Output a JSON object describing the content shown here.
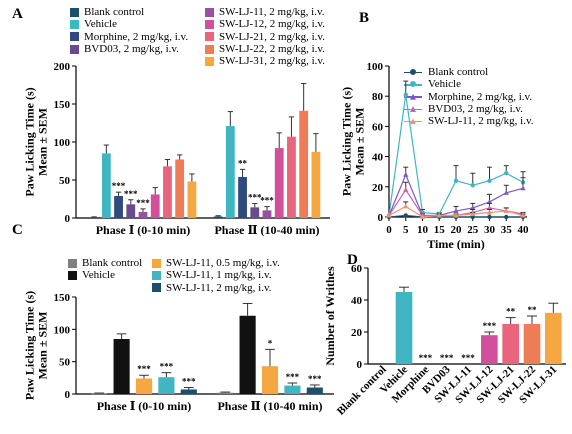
{
  "panels": [
    {
      "letter": "A"
    },
    {
      "letter": "B"
    },
    {
      "letter": "C"
    },
    {
      "letter": "D"
    }
  ],
  "chart_data": [
    {
      "panel": "A",
      "type": "bar",
      "ylabel": "Paw Licking Time (s)\nMean ± SEM",
      "ylim": [
        0,
        200
      ],
      "yticks": [
        0,
        50,
        100,
        150,
        200
      ],
      "groups": [
        "Phase Ⅰ (0-10 min)",
        "Phase Ⅱ (10-40 min)"
      ],
      "legend_placement": "top",
      "series": [
        {
          "name": "Blank control",
          "color": "#1b4f6b",
          "values": [
            1,
            2
          ],
          "err": [
            0.5,
            1
          ],
          "sig": [
            "",
            ""
          ]
        },
        {
          "name": "Vehicle",
          "color": "#3fb6c2",
          "values": [
            85,
            121
          ],
          "err": [
            11,
            19
          ],
          "sig": [
            "",
            ""
          ]
        },
        {
          "name": "Morphine, 2 mg/kg, i.v.",
          "color": "#2f4a7c",
          "values": [
            29,
            54
          ],
          "err": [
            5,
            10
          ],
          "sig": [
            "***",
            "**"
          ]
        },
        {
          "name": "BVD03, 2 mg/kg, i.v.",
          "color": "#6a4a8f",
          "values": [
            18,
            14
          ],
          "err": [
            6,
            5
          ],
          "sig": [
            "***",
            "***"
          ]
        },
        {
          "name": "SW-LJ-11, 2 mg/kg, i.v.",
          "color": "#9b4fa0",
          "values": [
            8,
            10
          ],
          "err": [
            4,
            5
          ],
          "sig": [
            "***",
            "***"
          ]
        },
        {
          "name": "SW-LJ-12, 2 mg/kg, i.v.",
          "color": "#d2509b",
          "values": [
            31,
            92
          ],
          "err": [
            9,
            20
          ],
          "sig": [
            "",
            ""
          ]
        },
        {
          "name": "SW-LJ-21, 2 mg/kg, i.v.",
          "color": "#e8657d",
          "values": [
            68,
            107
          ],
          "err": [
            9,
            26
          ],
          "sig": [
            "",
            ""
          ]
        },
        {
          "name": "SW-LJ-22, 2 mg/kg, i.v.",
          "color": "#ee7d57",
          "values": [
            77,
            141
          ],
          "err": [
            6,
            36
          ],
          "sig": [
            "",
            ""
          ]
        },
        {
          "name": "SW-LJ-31, 2 mg/kg, i.v.",
          "color": "#f5a742",
          "values": [
            48,
            87
          ],
          "err": [
            10,
            24
          ],
          "sig": [
            "",
            ""
          ]
        }
      ]
    },
    {
      "panel": "B",
      "type": "line",
      "xlabel": "Time (min)",
      "ylabel": "Paw Licking Time (s)\nMean ± SEM",
      "xlim": [
        0,
        40
      ],
      "ylim": [
        0,
        100
      ],
      "xticks": [
        0,
        5,
        10,
        15,
        20,
        25,
        30,
        35,
        40
      ],
      "yticks": [
        0,
        20,
        40,
        60,
        80,
        100
      ],
      "legend_placement": "top-right",
      "x": [
        0,
        5,
        10,
        15,
        20,
        25,
        30,
        35,
        40
      ],
      "series": [
        {
          "name": "Blank control",
          "color": "#1b4f6b",
          "marker": "circle",
          "values": [
            0,
            1,
            0,
            0,
            0,
            0,
            0,
            0,
            0
          ],
          "err": [
            0,
            0.5,
            0,
            0,
            0,
            0,
            0,
            0,
            0
          ]
        },
        {
          "name": "Vehicle",
          "color": "#3fb6c2",
          "marker": "circle",
          "values": [
            1,
            81,
            3,
            2,
            24,
            21,
            24,
            29,
            23
          ],
          "err": [
            0.5,
            9,
            2,
            1,
            10,
            8,
            9,
            5,
            7
          ]
        },
        {
          "name": "Morphine, 2 mg/kg, i.v.",
          "color": "#7b5bc2",
          "marker": "triangle",
          "values": [
            1,
            28,
            1,
            1,
            4,
            6,
            10,
            16,
            19
          ],
          "err": [
            0.5,
            5,
            1,
            1,
            3,
            3,
            5,
            5,
            7
          ]
        },
        {
          "name": "BVD03, 2 mg/kg, i.v.",
          "color": "#cf5fb0",
          "marker": "triangle",
          "values": [
            1,
            18,
            1,
            1,
            1,
            3,
            6,
            4,
            2
          ],
          "err": [
            0.5,
            5,
            1,
            1,
            1,
            2,
            3,
            2,
            1
          ]
        },
        {
          "name": "SW-LJ-11, 2 mg/kg, i.v.",
          "color": "#f0926a",
          "marker": "triangle",
          "values": [
            1,
            7,
            0,
            1,
            1,
            2,
            3,
            4,
            1
          ],
          "err": [
            0.5,
            3,
            0.5,
            1,
            1,
            1,
            2,
            2,
            1
          ]
        }
      ]
    },
    {
      "panel": "C",
      "type": "bar",
      "ylabel": "Paw Licking Time (s)\nMean ± SEM",
      "ylim": [
        0,
        150
      ],
      "yticks": [
        0,
        50,
        100,
        150
      ],
      "groups": [
        "Phase Ⅰ (0-10 min)",
        "Phase Ⅱ (10-40 min)"
      ],
      "legend_placement": "top",
      "series": [
        {
          "name": "Blank control",
          "color": "#808080",
          "values": [
            1,
            2
          ],
          "err": [
            0.5,
            1
          ],
          "sig": [
            "",
            ""
          ]
        },
        {
          "name": "Vehicle",
          "color": "#111111",
          "values": [
            85,
            121
          ],
          "err": [
            8,
            19
          ],
          "sig": [
            "",
            ""
          ]
        },
        {
          "name": "SW-LJ-11, 0.5 mg/kg, i.v.",
          "color": "#f5a742",
          "values": [
            24,
            43
          ],
          "err": [
            5,
            26
          ],
          "sig": [
            "***",
            "*"
          ]
        },
        {
          "name": "SW-LJ-11, 1 mg/kg, i.v.",
          "color": "#3fb6c2",
          "values": [
            26,
            13
          ],
          "err": [
            7,
            4
          ],
          "sig": [
            "***",
            "***"
          ]
        },
        {
          "name": "SW-LJ-11, 2 mg/kg, i.v.",
          "color": "#1b4f6b",
          "values": [
            7,
            10
          ],
          "err": [
            3,
            4
          ],
          "sig": [
            "***",
            "***"
          ]
        }
      ]
    },
    {
      "panel": "D",
      "type": "bar",
      "ylabel": "Number of Writhes",
      "ylim": [
        0,
        60
      ],
      "yticks": [
        0,
        20,
        40,
        60
      ],
      "categories": [
        "Blank control",
        "Vehicle",
        "Morphine",
        "BVD03",
        "SW-LJ-11",
        "SW-LJ-12",
        "SW-LJ-21",
        "SW-LJ-22",
        "SW-LJ-31"
      ],
      "values": [
        0,
        45,
        0,
        0,
        0,
        18,
        25,
        25,
        32
      ],
      "err": [
        0,
        3,
        0,
        0,
        0,
        2,
        4,
        5,
        6
      ],
      "sig": [
        "",
        "",
        "***",
        "***",
        "***",
        "***",
        "**",
        "**",
        ""
      ],
      "colors": [
        "#1b4f6b",
        "#3fb6c2",
        "#2f4a7c",
        "#6a4a8f",
        "#9b4fa0",
        "#d2509b",
        "#e8657d",
        "#ee7d57",
        "#f5a742"
      ]
    }
  ]
}
